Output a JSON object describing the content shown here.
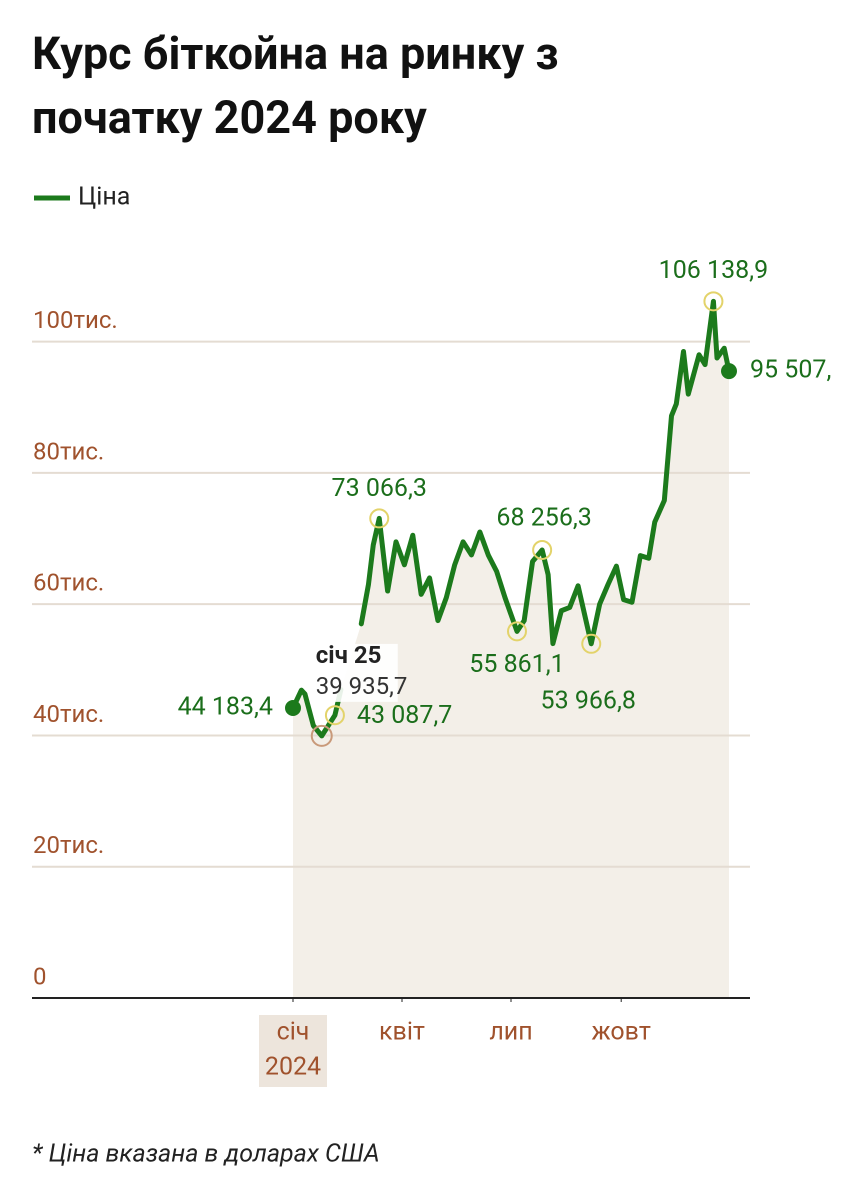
{
  "chart_data": {
    "type": "line",
    "title": [
      "Курс біткойна на ринку з",
      "початку 2024 року"
    ],
    "footnote": "* Ціна вказана в доларах США",
    "x": [
      "2024-01-01",
      "2024-01-08",
      "2024-01-11",
      "2024-01-18",
      "2024-01-25",
      "2024-02-05",
      "2024-02-10",
      "2024-02-18",
      "2024-02-27",
      "2024-03-04",
      "2024-03-08",
      "2024-03-13",
      "2024-03-20",
      "2024-03-27",
      "2024-04-03",
      "2024-04-10",
      "2024-04-17",
      "2024-04-24",
      "2024-05-01",
      "2024-05-08",
      "2024-05-15",
      "2024-05-22",
      "2024-05-29",
      "2024-06-05",
      "2024-06-12",
      "2024-06-19",
      "2024-06-26",
      "2024-07-06",
      "2024-07-12",
      "2024-07-19",
      "2024-07-27",
      "2024-08-01",
      "2024-08-05",
      "2024-08-12",
      "2024-08-19",
      "2024-08-26",
      "2024-09-06",
      "2024-09-13",
      "2024-09-20",
      "2024-09-27",
      "2024-10-03",
      "2024-10-10",
      "2024-10-17",
      "2024-10-24",
      "2024-10-29",
      "2024-11-06",
      "2024-11-12",
      "2024-11-16",
      "2024-11-22",
      "2024-11-26",
      "2024-12-05",
      "2024-12-10",
      "2024-12-17",
      "2024-12-20",
      "2024-12-26",
      "2024-12-30"
    ],
    "series": [
      {
        "name": "Ціна",
        "color": "#1c7a1c",
        "values": [
          44183.4,
          46900,
          46300,
          41500,
          39935.7,
          43087.7,
          47000,
          null,
          57000,
          63000,
          69000,
          73066.3,
          62000,
          69500,
          66000,
          70500,
          61500,
          64000,
          57500,
          61000,
          66000,
          69500,
          67500,
          71000,
          67500,
          65000,
          61000,
          55861.1,
          57500,
          66500,
          68256.3,
          64500,
          54000,
          59000,
          59500,
          62800,
          53966.8,
          60000,
          63000,
          65800,
          60700,
          60300,
          67400,
          67000,
          72500,
          75800,
          88700,
          90500,
          98500,
          92000,
          98000,
          96500,
          106138.9,
          97500,
          99000,
          95507
        ]
      }
    ],
    "annotations": [
      {
        "x": "2024-01-01",
        "value": 44183.4,
        "label": "44 183,4"
      },
      {
        "x": "2024-02-05",
        "value": 43087.7,
        "label": "43 087,7"
      },
      {
        "x": "2024-03-13",
        "value": 73066.3,
        "label": "73 066,3"
      },
      {
        "x": "2024-07-06",
        "value": 55861.1,
        "label": "55 861,1"
      },
      {
        "x": "2024-07-27",
        "value": 68256.3,
        "label": "68 256,3"
      },
      {
        "x": "2024-09-06",
        "value": 53966.8,
        "label": "53 966,8"
      },
      {
        "x": "2024-12-17",
        "value": 106138.9,
        "label": "106 138,9"
      },
      {
        "x": "2024-12-30",
        "value": 95507,
        "label": "95 507,"
      }
    ],
    "tooltip": {
      "title": "січ 25",
      "x": "2024-01-25",
      "value": 39935.7,
      "label": "39 935,7"
    },
    "ylim": [
      0,
      110000
    ],
    "yticks": [
      0,
      {
        "value": 20000,
        "label": "20тис."
      },
      {
        "value": 40000,
        "label": "40тис."
      },
      {
        "value": 60000,
        "label": "60тис."
      },
      {
        "value": 80000,
        "label": "80тис."
      },
      {
        "value": 100000,
        "label": "100тис."
      }
    ],
    "xticks": [
      {
        "value": "2024-01-01",
        "label": [
          "січ",
          "2024"
        ]
      },
      {
        "value": "2024-04-01",
        "label": "квіт"
      },
      {
        "value": "2024-07-01",
        "label": "лип"
      },
      {
        "value": "2024-10-01",
        "label": "жовт"
      }
    ],
    "grid": true
  }
}
